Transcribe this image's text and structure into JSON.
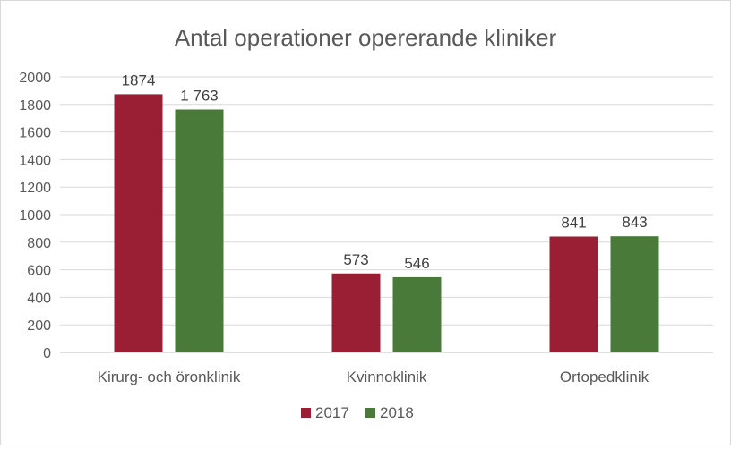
{
  "chart_data": {
    "type": "bar",
    "title": "Antal operationer opererande kliniker",
    "categories": [
      "Kirurg- och öronklinik",
      "Kvinnoklinik",
      "Ortopedklinik"
    ],
    "series": [
      {
        "name": "2017",
        "values": [
          1874,
          573,
          841
        ],
        "labels": [
          "1874",
          "573",
          "841"
        ],
        "color": "#9b1f34"
      },
      {
        "name": "2018",
        "values": [
          1763,
          546,
          843
        ],
        "labels": [
          "1 763",
          "546",
          "843"
        ],
        "color": "#4a7a3a"
      }
    ],
    "ylim": [
      0,
      2000
    ],
    "yticks": [
      0,
      200,
      400,
      600,
      800,
      1000,
      1200,
      1400,
      1600,
      1800,
      2000
    ],
    "grid": true,
    "legend": "bottom",
    "xlabel": "",
    "ylabel": ""
  }
}
